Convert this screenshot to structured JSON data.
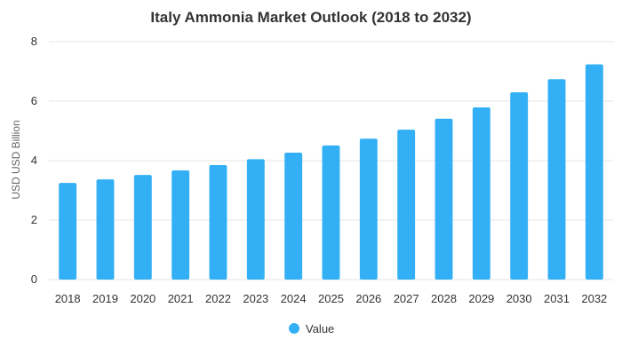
{
  "chart_data": {
    "type": "bar",
    "title": "Italy Ammonia Market Outlook (2018 to 2032)",
    "xlabel": "",
    "ylabel": "USD USD Billion",
    "categories": [
      "2018",
      "2019",
      "2020",
      "2021",
      "2022",
      "2023",
      "2024",
      "2025",
      "2026",
      "2027",
      "2028",
      "2029",
      "2030",
      "2031",
      "2032"
    ],
    "series": [
      {
        "name": "Value",
        "values": [
          3.25,
          3.37,
          3.52,
          3.67,
          3.85,
          4.05,
          4.27,
          4.51,
          4.74,
          5.04,
          5.41,
          5.79,
          6.3,
          6.74,
          7.24
        ]
      }
    ],
    "ylim": [
      0,
      8
    ],
    "yticks": [
      "0",
      "2",
      "4",
      "6",
      "8"
    ],
    "grid": true,
    "legend": "bottom",
    "colors": {
      "bar": "#33b0f5"
    }
  }
}
